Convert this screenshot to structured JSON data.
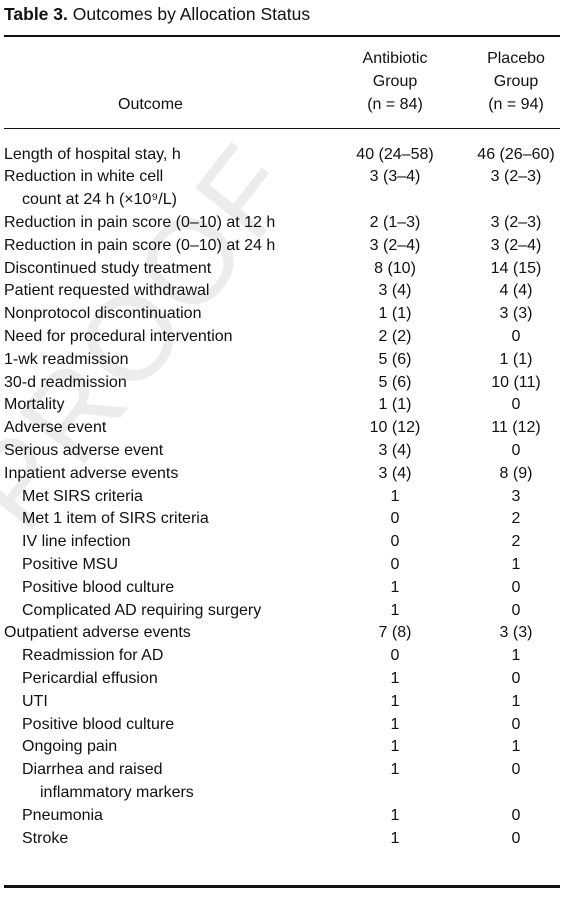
{
  "title": {
    "label": "Table 3.",
    "text": "Outcomes by Allocation Status"
  },
  "watermark": "PROOF",
  "table": {
    "header": {
      "outcome": "Outcome",
      "groups": [
        [
          "Antibiotic",
          "Group",
          "(n = 84)"
        ],
        [
          "Placebo",
          "Group",
          "(n = 94)"
        ]
      ]
    },
    "rows": [
      {
        "label": [
          "Length of hospital stay, h"
        ],
        "indent": false,
        "values": [
          "40 (24–58)",
          "46 (26–60)"
        ]
      },
      {
        "label": [
          "Reduction in white cell",
          "count at 24 h (×10⁹/L)"
        ],
        "indent": false,
        "values": [
          "3 (3–4)",
          "3 (2–3)"
        ]
      },
      {
        "label": [
          "Reduction in pain score (0–10) at 12 h"
        ],
        "indent": false,
        "values": [
          "2 (1–3)",
          "3 (2–3)"
        ]
      },
      {
        "label": [
          "Reduction in pain score (0–10) at 24 h"
        ],
        "indent": false,
        "values": [
          "3 (2–4)",
          "3 (2–4)"
        ]
      },
      {
        "label": [
          "Discontinued study treatment"
        ],
        "indent": false,
        "values": [
          "8 (10)",
          "14 (15)"
        ]
      },
      {
        "label": [
          "Patient requested withdrawal"
        ],
        "indent": false,
        "values": [
          "3 (4)",
          "4 (4)"
        ]
      },
      {
        "label": [
          "Nonprotocol discontinuation"
        ],
        "indent": false,
        "values": [
          "1 (1)",
          "3 (3)"
        ]
      },
      {
        "label": [
          "Need for procedural intervention"
        ],
        "indent": false,
        "values": [
          "2 (2)",
          "0"
        ]
      },
      {
        "label": [
          "1-wk readmission"
        ],
        "indent": false,
        "values": [
          "5 (6)",
          "1 (1)"
        ]
      },
      {
        "label": [
          "30-d readmission"
        ],
        "indent": false,
        "values": [
          "5 (6)",
          "10 (11)"
        ]
      },
      {
        "label": [
          "Mortality"
        ],
        "indent": false,
        "values": [
          "1 (1)",
          "0"
        ]
      },
      {
        "label": [
          "Adverse event"
        ],
        "indent": false,
        "values": [
          "10 (12)",
          "11 (12)"
        ]
      },
      {
        "label": [
          "Serious adverse event"
        ],
        "indent": false,
        "values": [
          "3 (4)",
          "0"
        ]
      },
      {
        "label": [
          "Inpatient adverse events"
        ],
        "indent": false,
        "values": [
          "3 (4)",
          "8 (9)"
        ]
      },
      {
        "label": [
          "Met SIRS criteria"
        ],
        "indent": true,
        "values": [
          "1",
          "3"
        ]
      },
      {
        "label": [
          "Met 1 item of SIRS criteria"
        ],
        "indent": true,
        "values": [
          "0",
          "2"
        ]
      },
      {
        "label": [
          "IV line infection"
        ],
        "indent": true,
        "values": [
          "0",
          "2"
        ]
      },
      {
        "label": [
          "Positive MSU"
        ],
        "indent": true,
        "values": [
          "0",
          "1"
        ]
      },
      {
        "label": [
          "Positive blood culture"
        ],
        "indent": true,
        "values": [
          "1",
          "0"
        ]
      },
      {
        "label": [
          "Complicated AD requiring surgery"
        ],
        "indent": true,
        "values": [
          "1",
          "0"
        ]
      },
      {
        "label": [
          "Outpatient adverse events"
        ],
        "indent": false,
        "values": [
          "7 (8)",
          "3 (3)"
        ]
      },
      {
        "label": [
          "Readmission for AD"
        ],
        "indent": true,
        "values": [
          "0",
          "1"
        ]
      },
      {
        "label": [
          "Pericardial effusion"
        ],
        "indent": true,
        "values": [
          "1",
          "0"
        ]
      },
      {
        "label": [
          "UTI"
        ],
        "indent": true,
        "values": [
          "1",
          "1"
        ]
      },
      {
        "label": [
          "Positive blood culture"
        ],
        "indent": true,
        "values": [
          "1",
          "0"
        ]
      },
      {
        "label": [
          "Ongoing pain"
        ],
        "indent": true,
        "values": [
          "1",
          "1"
        ]
      },
      {
        "label": [
          "Diarrhea and raised",
          "inflammatory markers"
        ],
        "indent": true,
        "values": [
          "1",
          "0"
        ]
      },
      {
        "label": [
          "Pneumonia"
        ],
        "indent": true,
        "values": [
          "1",
          "0"
        ]
      },
      {
        "label": [
          "Stroke"
        ],
        "indent": true,
        "values": [
          "1",
          "0"
        ]
      }
    ]
  }
}
